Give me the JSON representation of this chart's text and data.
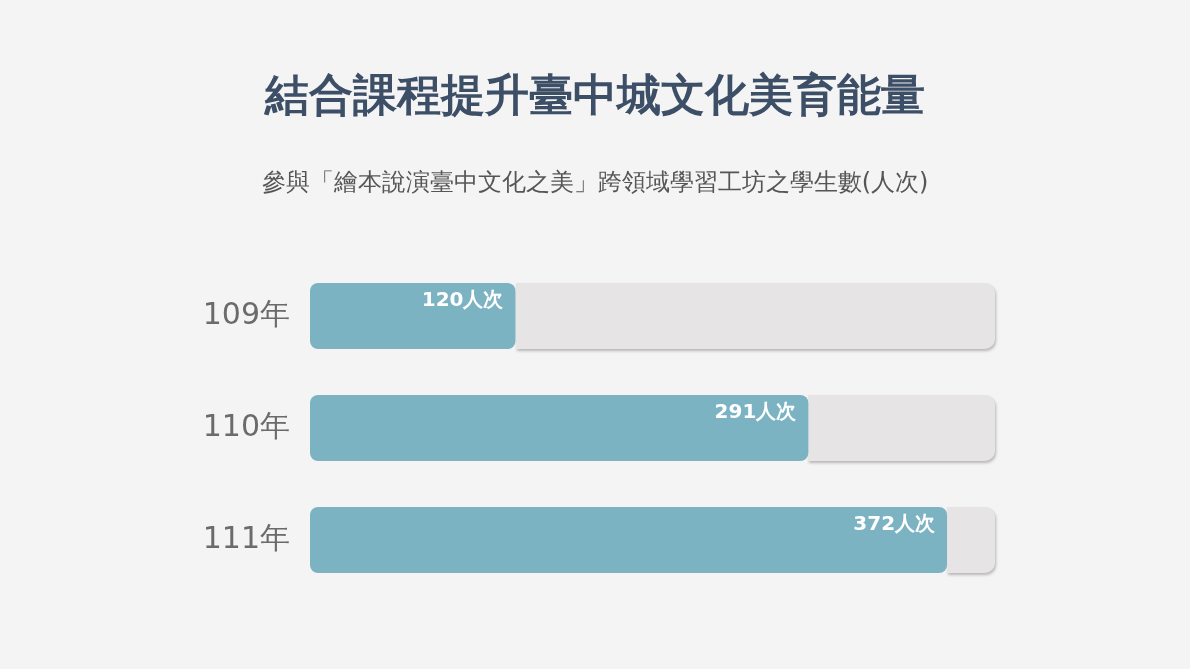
{
  "chart_data": {
    "type": "bar",
    "orientation": "horizontal",
    "title": "結合課程提升臺中城文化美育能量",
    "subtitle": "參與「繪本說演臺中文化之美」跨領域學習工坊之學生數(人次)",
    "categories": [
      "109年",
      "110年",
      "111年"
    ],
    "values": [
      120,
      291,
      372
    ],
    "value_labels": [
      "120人次",
      "291人次",
      "372人次"
    ],
    "color": "#7bb3c3",
    "xlim": [
      0,
      400
    ],
    "tick_labels": "y"
  }
}
